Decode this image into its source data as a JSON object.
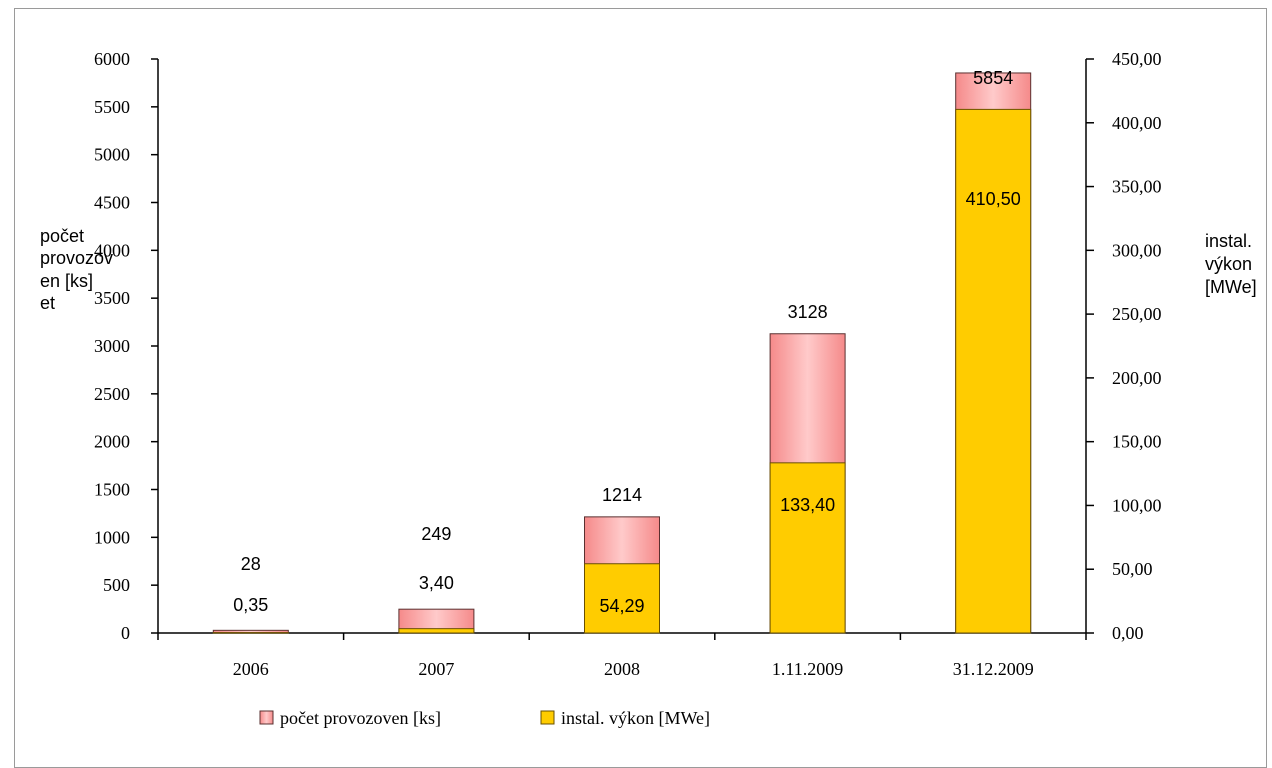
{
  "chart_data": {
    "type": "bar",
    "categories": [
      "2006",
      "2007",
      "2008",
      "1.11.2009",
      "31.12.2009"
    ],
    "series": [
      {
        "name": "počet provozoven [ks]",
        "axis": "left",
        "color": "#f9a8a8",
        "values": [
          28,
          249,
          1214,
          3128,
          5854
        ],
        "labels": [
          "28",
          "249",
          "1214",
          "3128",
          "5854"
        ]
      },
      {
        "name": "instal. výkon [MWe]",
        "axis": "right",
        "color": "#ffcc00",
        "values": [
          0.35,
          3.4,
          54.29,
          133.4,
          410.5
        ],
        "labels": [
          "0,35",
          "3,40",
          "54,29",
          "133,40",
          "410,50"
        ]
      }
    ],
    "y_left": {
      "label": "počet provozoven [ks]",
      "label_lines": [
        "počet",
        "provozov",
        "en [ks]",
        "et"
      ],
      "ylim": [
        0,
        6000
      ],
      "ticks": [
        "0",
        "500",
        "1000",
        "1500",
        "2000",
        "2500",
        "3000",
        "3500",
        "4000",
        "4500",
        "5000",
        "5500",
        "6000"
      ]
    },
    "y_right": {
      "label": "instal. výkon [MWe]",
      "label_lines": [
        "instal.",
        "výkon",
        "[MWe]"
      ],
      "ylim": [
        0,
        450
      ],
      "ticks": [
        "0,00",
        "50,00",
        "100,00",
        "150,00",
        "200,00",
        "250,00",
        "300,00",
        "350,00",
        "400,00",
        "450,00"
      ]
    },
    "grid": false,
    "legend": {
      "position": "bottom",
      "items": [
        "počet provozoven [ks]",
        "instal. výkon [MWe]"
      ]
    }
  }
}
